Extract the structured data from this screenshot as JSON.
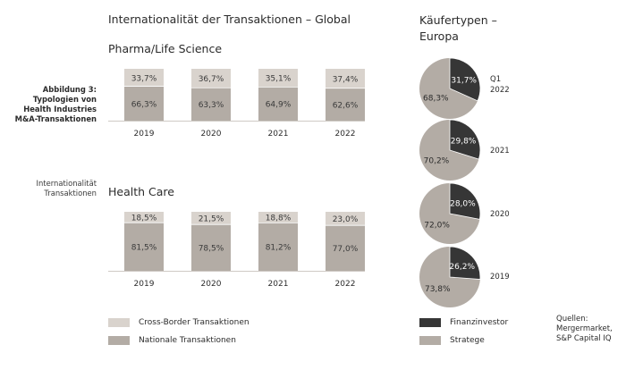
{
  "header": {
    "title": "Internationalität der Transaktionen – Global",
    "buyer_title": "Käufertypen –\nEuropa"
  },
  "caption": {
    "figure_label": "Abbildung 3:\nTypologien von\nHealth Industries\nM&A-Transaktionen",
    "section_label": "Internationalität\nTransaktionen"
  },
  "legend_left": [
    {
      "label": "Cross-Border Transaktionen",
      "color": "#d9d3cd"
    },
    {
      "label": "Nationale Transaktionen",
      "color": "#b3aca5"
    }
  ],
  "legend_right": [
    {
      "label": "Finanzinvestor",
      "color": "#363636"
    },
    {
      "label": "Stratege",
      "color": "#b3aca5"
    }
  ],
  "source": "Quellen:\nMergermarket,\nS&P Capital IQ",
  "colors": {
    "cross_border": "#d9d3cd",
    "national": "#b3aca5",
    "finance": "#363636",
    "strategic": "#b3aca5"
  },
  "chart_data": [
    {
      "type": "bar",
      "stacked": true,
      "title": "Pharma/Life Science",
      "categories": [
        "2019",
        "2020",
        "2021",
        "2022"
      ],
      "series": [
        {
          "name": "Nationale Transaktionen",
          "values": [
            66.3,
            63.3,
            64.9,
            62.6
          ],
          "labels": [
            "66,3%",
            "63,3%",
            "64,9%",
            "62,6%"
          ]
        },
        {
          "name": "Cross-Border Transaktionen",
          "values": [
            33.7,
            36.7,
            35.1,
            37.4
          ],
          "labels": [
            "33,7%",
            "36,7%",
            "35,1%",
            "37,4%"
          ]
        }
      ]
    },
    {
      "type": "bar",
      "stacked": true,
      "title": "Health Care",
      "categories": [
        "2019",
        "2020",
        "2021",
        "2022"
      ],
      "series": [
        {
          "name": "Nationale Transaktionen",
          "values": [
            81.5,
            78.5,
            81.2,
            77.0
          ],
          "labels": [
            "81,5%",
            "78,5%",
            "81,2%",
            "77,0%"
          ]
        },
        {
          "name": "Cross-Border Transaktionen",
          "values": [
            18.5,
            21.5,
            18.8,
            23.0
          ],
          "labels": [
            "18,5%",
            "21,5%",
            "18,8%",
            "23,0%"
          ]
        }
      ]
    },
    {
      "type": "pie",
      "title": "Käufertypen – Europa",
      "pies": [
        {
          "period": "Q1\n2022",
          "finance": 31.7,
          "strategic": 68.3,
          "finance_label": "31,7%",
          "strategic_label": "68,3%"
        },
        {
          "period": "2021",
          "finance": 29.8,
          "strategic": 70.2,
          "finance_label": "29,8%",
          "strategic_label": "70,2%"
        },
        {
          "period": "2020",
          "finance": 28.0,
          "strategic": 72.0,
          "finance_label": "28,0%",
          "strategic_label": "72,0%"
        },
        {
          "period": "2019",
          "finance": 26.2,
          "strategic": 73.8,
          "finance_label": "26,2%",
          "strategic_label": "73,8%"
        }
      ]
    }
  ]
}
